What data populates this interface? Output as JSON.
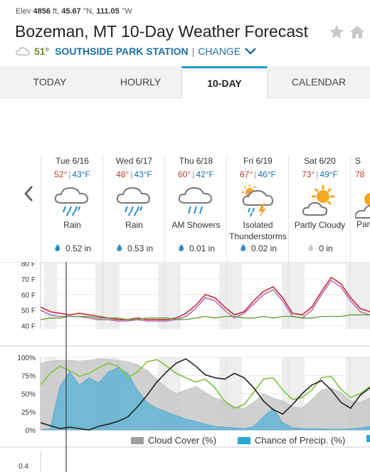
{
  "header": {
    "elev_label": "Elev",
    "elev_value": "4856",
    "elev_unit": "ft,",
    "lat": "45.67",
    "lat_unit": "°N,",
    "lon": "111.05",
    "lon_unit": "°W",
    "title": "Bozeman, MT 10-Day Weather Forecast",
    "current_temp": "51°",
    "station_name": "SOUTHSIDE PARK STATION",
    "separator": "|",
    "change_label": "CHANGE"
  },
  "tabs": [
    {
      "label": "TODAY"
    },
    {
      "label": "HOURLY"
    },
    {
      "label": "10-DAY",
      "active": true
    },
    {
      "label": "CALENDAR"
    }
  ],
  "days": [
    {
      "date": "Tue 6/16",
      "high": "52°",
      "low": "43°F",
      "condition": "Rain",
      "icon": "rain-icon",
      "precip": "0.52 in"
    },
    {
      "date": "Wed 6/17",
      "high": "48°",
      "low": "43°F",
      "condition": "Rain",
      "icon": "rain-icon",
      "precip": "0.53 in"
    },
    {
      "date": "Thu 6/18",
      "high": "60°",
      "low": "42°F",
      "condition": "AM Showers",
      "icon": "showers-icon",
      "precip": "0.01 in"
    },
    {
      "date": "Fri 6/19",
      "high": "67°",
      "low": "46°F",
      "condition": "Isolated Thunderstorms",
      "icon": "thunderstorm-icon",
      "precip": "0.02 in"
    },
    {
      "date": "Sat 6/20",
      "high": "73°",
      "low": "49°F",
      "condition": "Partly Cloudy",
      "icon": "partly-cloudy-icon",
      "precip": "0 in"
    },
    {
      "date": "S",
      "high": "78",
      "low": "",
      "condition": "Par",
      "icon": "partly-cloudy-icon",
      "precip": ""
    }
  ],
  "colors": {
    "accent": "#1a9bd7",
    "link": "#1a6fa3",
    "temp_line": "#c8283c",
    "feels_like_line": "#b070b0",
    "dewpoint_line": "#5aa02c",
    "cloud_fill": "#c8c8c8",
    "precip_fill": "#5bb3d6"
  },
  "chart_data": [
    {
      "type": "line",
      "y_ticks": [
        "80 F",
        "70 F",
        "60 F",
        "50 F",
        "40 F"
      ],
      "ylim": [
        38,
        80
      ],
      "series": [
        {
          "values": [
            52,
            49,
            48,
            47,
            48,
            47,
            46,
            45,
            44,
            44,
            45,
            44,
            44,
            44,
            45,
            48,
            53,
            60,
            58,
            52,
            47,
            49,
            56,
            62,
            65,
            58,
            48,
            47,
            52,
            62,
            71,
            67,
            58,
            51,
            49
          ]
        },
        {
          "values": [
            50,
            47,
            46,
            46,
            46,
            45,
            44,
            44,
            43,
            43,
            44,
            43,
            43,
            43,
            44,
            46,
            51,
            58,
            56,
            50,
            45,
            48,
            54,
            60,
            63,
            56,
            46,
            45,
            50,
            60,
            69,
            65,
            56,
            49,
            47
          ]
        },
        {
          "values": [
            44,
            45,
            45,
            46,
            46,
            46,
            45,
            45,
            45,
            44,
            44,
            45,
            45,
            45,
            44,
            44,
            45,
            46,
            45,
            46,
            46,
            45,
            45,
            46,
            45,
            46,
            46,
            45,
            45,
            46,
            46,
            46,
            47,
            47,
            47
          ]
        }
      ]
    },
    {
      "type": "area",
      "y_ticks": [
        "100%",
        "75%",
        "50%",
        "25%",
        "0%"
      ],
      "ylim": [
        0,
        100
      ],
      "legend": [
        "Cloud Cover (%)",
        "Chance of Precip. (%)"
      ],
      "series": [
        {
          "name": "Cloud Cover (%)",
          "values": [
            92,
            95,
            96,
            96,
            95,
            96,
            98,
            97,
            96,
            94,
            90,
            82,
            70,
            58,
            50,
            55,
            60,
            52,
            44,
            40,
            32,
            30,
            38,
            50,
            44,
            40,
            32,
            30,
            42,
            55,
            58,
            52,
            40,
            38,
            44
          ]
        },
        {
          "name": "Chance of Precip. (%)",
          "values": [
            0,
            2,
            60,
            80,
            62,
            72,
            65,
            80,
            86,
            78,
            55,
            38,
            30,
            25,
            20,
            15,
            12,
            8,
            5,
            4,
            3,
            2,
            5,
            18,
            30,
            10,
            3,
            2,
            2,
            2,
            1,
            1,
            2,
            3,
            5
          ]
        },
        {
          "values": [
            62,
            78,
            88,
            82,
            74,
            78,
            86,
            92,
            88,
            72,
            80,
            94,
            97,
            88,
            78,
            72,
            66,
            70,
            58,
            40,
            30,
            35,
            52,
            70,
            72,
            55,
            42,
            45,
            55,
            72,
            74,
            56,
            45,
            50,
            60
          ]
        },
        {
          "values": [
            10,
            6,
            2,
            4,
            2,
            0,
            5,
            8,
            12,
            18,
            32,
            48,
            66,
            80,
            92,
            98,
            88,
            76,
            72,
            70,
            78,
            72,
            58,
            40,
            28,
            22,
            35,
            50,
            62,
            68,
            55,
            38,
            30,
            48,
            58
          ]
        }
      ]
    }
  ]
}
